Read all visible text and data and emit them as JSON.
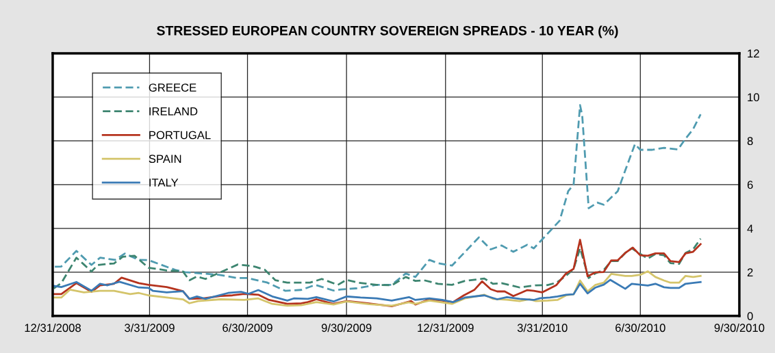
{
  "chart_data": {
    "type": "line",
    "title": "STRESSED EUROPEAN COUNTRY SOVEREIGN SPREADS - 10 YEAR (%)",
    "xlim": [
      "2008-12-31",
      "2010-09-30"
    ],
    "xticks": [
      {
        "value": "2008-12-31",
        "label": "12/31/2008"
      },
      {
        "value": "2009-03-31",
        "label": "3/31/2009"
      },
      {
        "value": "2009-06-30",
        "label": "6/30/2009"
      },
      {
        "value": "2009-09-30",
        "label": "9/30/2009"
      },
      {
        "value": "2009-12-31",
        "label": "12/31/2009"
      },
      {
        "value": "2010-03-31",
        "label": "3/31/2010"
      },
      {
        "value": "2010-06-30",
        "label": "6/30/2010"
      },
      {
        "value": "2010-09-30",
        "label": "9/30/2010"
      }
    ],
    "ylim": [
      0,
      12
    ],
    "yticks": [
      0,
      2,
      4,
      6,
      8,
      10,
      12
    ],
    "grid": true,
    "legend": "top left",
    "marker": "none",
    "series": [
      {
        "name": "GREECE",
        "color": "#4f9bb0",
        "line_style": "dashed",
        "x": [
          "2009-01-02",
          "2009-01-08",
          "2009-01-22",
          "2009-02-05",
          "2009-02-13",
          "2009-02-27",
          "2009-03-08",
          "2009-03-21",
          "2009-03-30",
          "2009-04-24",
          "2009-05-03",
          "2009-06-03",
          "2009-06-21",
          "2009-06-30",
          "2009-07-18",
          "2009-08-04",
          "2009-08-19",
          "2009-09-01",
          "2009-09-18",
          "2009-09-25",
          "2009-10-09",
          "2009-10-28",
          "2009-11-11",
          "2009-11-24",
          "2009-12-03",
          "2009-12-16",
          "2009-12-24",
          "2010-01-06",
          "2010-01-31",
          "2010-02-11",
          "2010-02-21",
          "2010-03-04",
          "2010-03-17",
          "2010-03-23",
          "2010-03-29",
          "2010-04-16",
          "2010-04-24",
          "2010-04-29",
          "2010-05-05",
          "2010-05-07",
          "2010-05-13",
          "2010-05-21",
          "2010-05-27",
          "2010-06-09",
          "2010-06-16",
          "2010-06-25",
          "2010-06-30",
          "2010-07-11",
          "2010-07-22",
          "2010-08-04",
          "2010-08-11",
          "2010-08-18",
          "2010-08-25"
        ],
        "values": [
          2.25,
          2.26,
          2.97,
          2.33,
          2.66,
          2.56,
          2.85,
          2.56,
          2.55,
          2.1,
          2.0,
          1.88,
          1.73,
          1.73,
          1.53,
          1.15,
          1.19,
          1.42,
          1.16,
          1.21,
          1.26,
          1.42,
          1.42,
          1.94,
          1.78,
          2.56,
          2.41,
          2.3,
          3.59,
          3.04,
          3.22,
          2.93,
          3.25,
          3.09,
          3.4,
          4.35,
          5.7,
          6.0,
          9.63,
          9.16,
          4.92,
          5.18,
          5.08,
          5.7,
          6.65,
          7.85,
          7.59,
          7.59,
          7.68,
          7.61,
          8.1,
          8.53,
          9.21
        ]
      },
      {
        "name": "IRELAND",
        "color": "#3d8570",
        "line_style": "dashed",
        "x": [
          "2009-01-01",
          "2009-01-08",
          "2009-01-17",
          "2009-01-22",
          "2009-01-29",
          "2009-02-05",
          "2009-02-11",
          "2009-02-20",
          "2009-02-26",
          "2009-03-06",
          "2009-03-17",
          "2009-03-30",
          "2009-04-07",
          "2009-04-16",
          "2009-05-01",
          "2009-05-07",
          "2009-05-14",
          "2009-05-22",
          "2009-06-05",
          "2009-06-21",
          "2009-06-30",
          "2009-07-07",
          "2009-07-16",
          "2009-07-26",
          "2009-08-06",
          "2009-08-27",
          "2009-09-07",
          "2009-09-22",
          "2009-09-30",
          "2009-10-11",
          "2009-10-28",
          "2009-11-11",
          "2009-11-24",
          "2009-12-03",
          "2009-12-11",
          "2009-12-24",
          "2010-01-06",
          "2010-01-18",
          "2010-02-05",
          "2010-02-13",
          "2010-02-21",
          "2010-03-10",
          "2010-03-25",
          "2010-04-05",
          "2010-04-13",
          "2010-04-22",
          "2010-04-29",
          "2010-05-05",
          "2010-05-13",
          "2010-05-19",
          "2010-05-27",
          "2010-06-03",
          "2010-06-09",
          "2010-06-16",
          "2010-06-22",
          "2010-06-30",
          "2010-07-07",
          "2010-07-14",
          "2010-07-22",
          "2010-07-28",
          "2010-08-05",
          "2010-08-11",
          "2010-08-18",
          "2010-08-25"
        ],
        "values": [
          1.26,
          1.5,
          2.25,
          2.66,
          2.35,
          2.03,
          2.33,
          2.38,
          2.4,
          2.7,
          2.75,
          2.2,
          2.15,
          2.08,
          2.03,
          1.63,
          1.8,
          1.69,
          2.0,
          2.35,
          2.3,
          2.25,
          2.11,
          1.63,
          1.52,
          1.52,
          1.69,
          1.42,
          1.65,
          1.52,
          1.42,
          1.4,
          1.78,
          1.6,
          1.63,
          1.47,
          1.42,
          1.6,
          1.71,
          1.47,
          1.5,
          1.3,
          1.4,
          1.41,
          1.52,
          1.83,
          2.15,
          3.09,
          1.73,
          1.94,
          2.1,
          2.51,
          2.51,
          2.88,
          3.09,
          2.83,
          2.62,
          2.83,
          2.77,
          2.41,
          2.38,
          2.88,
          3.04,
          3.53
        ]
      },
      {
        "name": "PORTUGAL",
        "color": "#b5331e",
        "line_style": "solid",
        "x": [
          "2009-01-01",
          "2009-01-08",
          "2009-01-22",
          "2009-02-05",
          "2009-02-13",
          "2009-02-26",
          "2009-03-05",
          "2009-03-21",
          "2009-03-30",
          "2009-04-16",
          "2009-05-01",
          "2009-05-07",
          "2009-05-20",
          "2009-06-05",
          "2009-06-16",
          "2009-06-27",
          "2009-07-10",
          "2009-07-20",
          "2009-08-06",
          "2009-08-19",
          "2009-08-25",
          "2009-09-02",
          "2009-09-18",
          "2009-09-30",
          "2009-10-17",
          "2009-11-11",
          "2009-11-29",
          "2009-12-03",
          "2009-12-16",
          "2009-12-28",
          "2010-01-07",
          "2010-01-17",
          "2010-01-27",
          "2010-02-03",
          "2010-02-11",
          "2010-02-17",
          "2010-02-24",
          "2010-03-04",
          "2010-03-17",
          "2010-03-23",
          "2010-03-31",
          "2010-04-13",
          "2010-04-22",
          "2010-04-29",
          "2010-05-05",
          "2010-05-12",
          "2010-05-19",
          "2010-05-27",
          "2010-06-03",
          "2010-06-09",
          "2010-06-16",
          "2010-06-23",
          "2010-06-30",
          "2010-07-07",
          "2010-07-14",
          "2010-07-22",
          "2010-07-28",
          "2010-08-05",
          "2010-08-11",
          "2010-08-18",
          "2010-08-25"
        ],
        "values": [
          1.0,
          1.0,
          1.5,
          1.1,
          1.4,
          1.47,
          1.75,
          1.5,
          1.42,
          1.32,
          1.13,
          0.78,
          0.8,
          0.91,
          0.94,
          1.01,
          0.97,
          0.73,
          0.55,
          0.58,
          0.63,
          0.76,
          0.55,
          0.68,
          0.59,
          0.44,
          0.68,
          0.52,
          0.76,
          0.7,
          0.63,
          0.94,
          1.2,
          1.58,
          1.22,
          1.12,
          1.12,
          0.91,
          1.18,
          1.15,
          1.08,
          1.41,
          1.94,
          2.15,
          3.48,
          1.81,
          1.99,
          2.01,
          2.54,
          2.54,
          2.88,
          3.12,
          2.77,
          2.75,
          2.86,
          2.86,
          2.51,
          2.46,
          2.86,
          2.93,
          3.28
        ]
      },
      {
        "name": "SPAIN",
        "color": "#d4c46a",
        "line_style": "solid",
        "x": [
          "2009-01-01",
          "2009-01-08",
          "2009-01-16",
          "2009-01-29",
          "2009-02-13",
          "2009-02-26",
          "2009-03-13",
          "2009-03-21",
          "2009-03-30",
          "2009-04-16",
          "2009-05-01",
          "2009-05-07",
          "2009-05-15",
          "2009-06-05",
          "2009-06-27",
          "2009-07-10",
          "2009-07-23",
          "2009-08-06",
          "2009-08-19",
          "2009-09-02",
          "2009-09-18",
          "2009-09-30",
          "2009-10-21",
          "2009-11-11",
          "2009-11-27",
          "2009-12-03",
          "2009-12-16",
          "2010-01-06",
          "2010-01-18",
          "2010-02-05",
          "2010-02-13",
          "2010-02-26",
          "2010-03-10",
          "2010-03-19",
          "2010-03-25",
          "2010-04-05",
          "2010-04-14",
          "2010-04-22",
          "2010-04-29",
          "2010-05-05",
          "2010-05-12",
          "2010-05-19",
          "2010-05-27",
          "2010-06-03",
          "2010-06-16",
          "2010-06-22",
          "2010-06-30",
          "2010-07-07",
          "2010-07-14",
          "2010-07-22",
          "2010-07-28",
          "2010-08-05",
          "2010-08-11",
          "2010-08-18",
          "2010-08-25"
        ],
        "values": [
          0.84,
          0.84,
          1.2,
          1.08,
          1.15,
          1.15,
          1.0,
          1.05,
          0.94,
          0.84,
          0.76,
          0.58,
          0.68,
          0.76,
          0.73,
          0.8,
          0.55,
          0.47,
          0.49,
          0.63,
          0.52,
          0.66,
          0.54,
          0.47,
          0.62,
          0.55,
          0.7,
          0.55,
          0.8,
          0.97,
          0.78,
          0.74,
          0.68,
          0.76,
          0.68,
          0.7,
          0.73,
          0.94,
          0.99,
          1.62,
          1.12,
          1.41,
          1.52,
          1.92,
          1.83,
          1.83,
          1.88,
          2.04,
          1.78,
          1.62,
          1.52,
          1.52,
          1.83,
          1.78,
          1.83
        ]
      },
      {
        "name": "ITALY",
        "color": "#3a7ab5",
        "line_style": "solid",
        "x": [
          "2009-01-01",
          "2009-01-08",
          "2009-01-22",
          "2009-02-05",
          "2009-02-13",
          "2009-02-20",
          "2009-03-03",
          "2009-03-21",
          "2009-03-30",
          "2009-04-03",
          "2009-04-16",
          "2009-05-01",
          "2009-05-07",
          "2009-05-14",
          "2009-05-22",
          "2009-06-12",
          "2009-06-24",
          "2009-07-01",
          "2009-07-10",
          "2009-07-23",
          "2009-08-06",
          "2009-08-12",
          "2009-08-25",
          "2009-09-02",
          "2009-09-18",
          "2009-09-30",
          "2009-10-13",
          "2009-10-28",
          "2009-11-11",
          "2009-11-27",
          "2009-12-03",
          "2009-12-16",
          "2009-12-28",
          "2010-01-07",
          "2010-01-18",
          "2010-02-05",
          "2010-02-17",
          "2010-02-26",
          "2010-03-10",
          "2010-03-23",
          "2010-03-29",
          "2010-04-07",
          "2010-04-14",
          "2010-04-22",
          "2010-04-29",
          "2010-05-05",
          "2010-05-12",
          "2010-05-19",
          "2010-05-27",
          "2010-06-02",
          "2010-06-16",
          "2010-06-22",
          "2010-07-07",
          "2010-07-14",
          "2010-07-22",
          "2010-07-28",
          "2010-08-05",
          "2010-08-11",
          "2010-08-25"
        ],
        "values": [
          1.37,
          1.32,
          1.55,
          1.15,
          1.47,
          1.4,
          1.56,
          1.3,
          1.28,
          1.15,
          1.08,
          1.13,
          0.78,
          0.89,
          0.78,
          1.05,
          1.1,
          1.01,
          1.18,
          0.89,
          0.7,
          0.8,
          0.78,
          0.86,
          0.66,
          0.89,
          0.84,
          0.8,
          0.7,
          0.86,
          0.73,
          0.8,
          0.73,
          0.63,
          0.84,
          0.94,
          0.76,
          0.86,
          0.78,
          0.73,
          0.81,
          0.84,
          0.89,
          0.97,
          0.99,
          1.47,
          1.03,
          1.29,
          1.43,
          1.65,
          1.24,
          1.47,
          1.39,
          1.47,
          1.31,
          1.28,
          1.28,
          1.47,
          1.55
        ]
      }
    ]
  }
}
